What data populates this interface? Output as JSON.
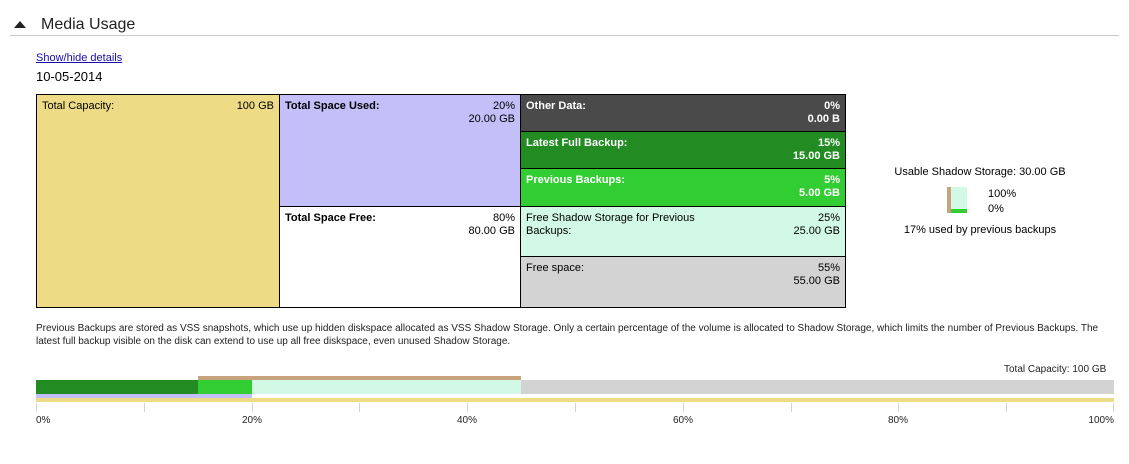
{
  "header": {
    "title": "Media Usage",
    "collapse_icon": "triangle-up-icon"
  },
  "details_link": "Show/hide details",
  "date": "10-05-2014",
  "capacity": {
    "total": {
      "label": "Total Capacity:",
      "value": "100 GB",
      "color": "#eddb86"
    },
    "used": {
      "label": "Total Space Used:",
      "percent": "20%",
      "size": "20.00 GB",
      "color": "#c2bff9"
    },
    "free": {
      "label": "Total Space Free:",
      "percent": "80%",
      "size": "80.00 GB",
      "color": "#ffffff"
    },
    "other_data": {
      "label": "Other Data:",
      "percent": "0%",
      "size": "0.00 B",
      "color": "#4a4a4a"
    },
    "latest_full": {
      "label": "Latest Full Backup:",
      "percent": "15%",
      "size": "15.00 GB",
      "color": "#228b22"
    },
    "previous": {
      "label": "Previous Backups:",
      "percent": "5%",
      "size": "5.00 GB",
      "color": "#32cd32"
    },
    "shadow_free": {
      "label": "Free Shadow Storage for Previous Backups:",
      "percent": "25%",
      "size": "25.00 GB",
      "color": "#d2f8e6"
    },
    "free_space": {
      "label": "Free space:",
      "percent": "55%",
      "size": "55.00 GB",
      "color": "#d3d3d3"
    }
  },
  "shadow_storage": {
    "title": "Usable Shadow Storage: 30.00 GB",
    "top_label": "100%",
    "bottom_label": "0%",
    "used_fraction": 0.17,
    "note": "17% used by previous backups"
  },
  "note": "Previous Backups are stored as VSS snapshots, which use up hidden diskspace allocated as VSS Shadow Storage. Only a certain percentage of the volume is allocated to Shadow Storage, which limits the number of Previous Backups. The latest full backup visible on the disk can extend to use up all free diskspace, even unused Shadow Storage.",
  "usage_bar": {
    "total_label": "Total Capacity: 100 GB",
    "segments": [
      {
        "name": "latest_full",
        "start": 0,
        "end": 15
      },
      {
        "name": "previous",
        "start": 15,
        "end": 20
      },
      {
        "name": "shadow_free",
        "start": 20,
        "end": 45
      },
      {
        "name": "free_space",
        "start": 45,
        "end": 100
      }
    ],
    "shadow_storage_range": [
      15,
      45
    ],
    "used_range": [
      0,
      20
    ],
    "total_range": [
      0,
      100
    ],
    "axis_labels": [
      "0%",
      "20%",
      "40%",
      "60%",
      "80%",
      "100%"
    ],
    "tick_count": 11
  }
}
